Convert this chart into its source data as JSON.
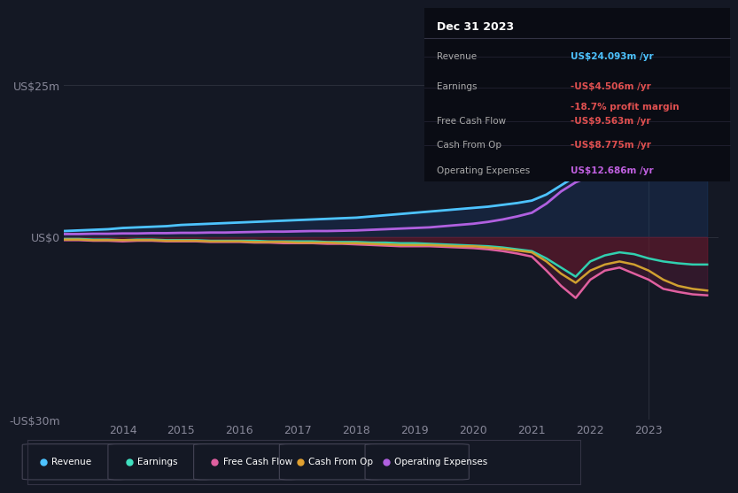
{
  "bg_color": "#141824",
  "plot_bg_color": "#141824",
  "grid_color": "#2a2e3a",
  "title": "Dec 31 2023",
  "years": [
    2013.0,
    2013.25,
    2013.5,
    2013.75,
    2014.0,
    2014.25,
    2014.5,
    2014.75,
    2015.0,
    2015.25,
    2015.5,
    2015.75,
    2016.0,
    2016.25,
    2016.5,
    2016.75,
    2017.0,
    2017.25,
    2017.5,
    2017.75,
    2018.0,
    2018.25,
    2018.5,
    2018.75,
    2019.0,
    2019.25,
    2019.5,
    2019.75,
    2020.0,
    2020.25,
    2020.5,
    2020.75,
    2021.0,
    2021.25,
    2021.5,
    2021.75,
    2022.0,
    2022.25,
    2022.5,
    2022.75,
    2023.0,
    2023.25,
    2023.5,
    2023.75,
    2024.0
  ],
  "revenue": [
    1.0,
    1.1,
    1.2,
    1.3,
    1.5,
    1.6,
    1.7,
    1.8,
    2.0,
    2.1,
    2.2,
    2.3,
    2.4,
    2.5,
    2.6,
    2.7,
    2.8,
    2.9,
    3.0,
    3.1,
    3.2,
    3.4,
    3.6,
    3.8,
    4.0,
    4.2,
    4.4,
    4.6,
    4.8,
    5.0,
    5.3,
    5.6,
    6.0,
    7.0,
    8.5,
    10.0,
    12.0,
    14.0,
    16.0,
    18.0,
    20.0,
    21.5,
    22.5,
    23.5,
    24.093
  ],
  "earnings": [
    -0.3,
    -0.3,
    -0.4,
    -0.4,
    -0.5,
    -0.4,
    -0.4,
    -0.5,
    -0.5,
    -0.5,
    -0.6,
    -0.6,
    -0.6,
    -0.6,
    -0.7,
    -0.7,
    -0.7,
    -0.7,
    -0.8,
    -0.8,
    -0.8,
    -0.9,
    -0.9,
    -1.0,
    -1.0,
    -1.1,
    -1.2,
    -1.3,
    -1.4,
    -1.5,
    -1.7,
    -2.0,
    -2.3,
    -3.5,
    -5.0,
    -6.5,
    -4.0,
    -3.0,
    -2.5,
    -2.8,
    -3.5,
    -4.0,
    -4.3,
    -4.5,
    -4.506
  ],
  "free_cash_flow": [
    -0.5,
    -0.5,
    -0.6,
    -0.6,
    -0.7,
    -0.6,
    -0.6,
    -0.7,
    -0.7,
    -0.7,
    -0.8,
    -0.8,
    -0.8,
    -0.9,
    -0.9,
    -1.0,
    -1.0,
    -1.0,
    -1.1,
    -1.1,
    -1.2,
    -1.3,
    -1.4,
    -1.5,
    -1.5,
    -1.5,
    -1.6,
    -1.7,
    -1.8,
    -2.0,
    -2.3,
    -2.7,
    -3.2,
    -5.5,
    -8.0,
    -10.0,
    -7.0,
    -5.5,
    -5.0,
    -6.0,
    -7.0,
    -8.5,
    -9.0,
    -9.4,
    -9.563
  ],
  "cash_from_op": [
    -0.4,
    -0.4,
    -0.5,
    -0.5,
    -0.5,
    -0.5,
    -0.5,
    -0.6,
    -0.6,
    -0.6,
    -0.7,
    -0.7,
    -0.7,
    -0.8,
    -0.8,
    -0.8,
    -0.9,
    -0.9,
    -0.9,
    -1.0,
    -1.0,
    -1.1,
    -1.2,
    -1.3,
    -1.3,
    -1.3,
    -1.4,
    -1.5,
    -1.5,
    -1.7,
    -1.9,
    -2.2,
    -2.5,
    -4.0,
    -6.0,
    -7.5,
    -5.5,
    -4.5,
    -4.0,
    -4.5,
    -5.5,
    -7.0,
    -8.0,
    -8.5,
    -8.775
  ],
  "operating_expenses": [
    0.5,
    0.5,
    0.55,
    0.55,
    0.6,
    0.6,
    0.65,
    0.65,
    0.7,
    0.7,
    0.75,
    0.75,
    0.8,
    0.85,
    0.9,
    0.9,
    0.95,
    1.0,
    1.0,
    1.05,
    1.1,
    1.2,
    1.3,
    1.4,
    1.5,
    1.6,
    1.8,
    2.0,
    2.2,
    2.5,
    2.9,
    3.4,
    4.0,
    5.5,
    7.5,
    9.0,
    10.0,
    11.0,
    11.5,
    11.8,
    12.0,
    12.2,
    12.4,
    12.55,
    12.686
  ],
  "xlim": [
    2013.0,
    2024.2
  ],
  "ylim": [
    -30,
    27
  ],
  "yticks": [
    -30,
    0,
    25
  ],
  "ytick_labels": [
    "-US$30m",
    "US$0",
    "US$25m"
  ],
  "xticks": [
    2014,
    2015,
    2016,
    2017,
    2018,
    2019,
    2020,
    2021,
    2022,
    2023
  ],
  "legend_items": [
    {
      "label": "Revenue",
      "color": "#4dc3ff"
    },
    {
      "label": "Earnings",
      "color": "#40e0c0"
    },
    {
      "label": "Free Cash Flow",
      "color": "#e060a0"
    },
    {
      "label": "Cash From Op",
      "color": "#e0a030"
    },
    {
      "label": "Operating Expenses",
      "color": "#b060e0"
    }
  ],
  "revenue_color": "#4dc3ff",
  "earnings_color": "#30d0b0",
  "fcf_color": "#e060a0",
  "cop_color": "#d0a030",
  "opex_color": "#b060e0",
  "fill_revenue_color": "#1a3a6a",
  "fill_earnings_color": "#6a1a1a",
  "fill_fcf_color": "#6a1a3a",
  "table_rows": [
    {
      "label": "Revenue",
      "value": "US$24.093m /yr",
      "val_color": "#4dc3ff",
      "sub": null,
      "sub_color": null
    },
    {
      "label": "Earnings",
      "value": "-US$4.506m /yr",
      "val_color": "#e05050",
      "sub": "-18.7% profit margin",
      "sub_color": "#e05050"
    },
    {
      "label": "Free Cash Flow",
      "value": "-US$9.563m /yr",
      "val_color": "#e05050",
      "sub": null,
      "sub_color": null
    },
    {
      "label": "Cash From Op",
      "value": "-US$8.775m /yr",
      "val_color": "#e05050",
      "sub": null,
      "sub_color": null
    },
    {
      "label": "Operating Expenses",
      "value": "US$12.686m /yr",
      "val_color": "#c060e0",
      "sub": null,
      "sub_color": null
    }
  ]
}
